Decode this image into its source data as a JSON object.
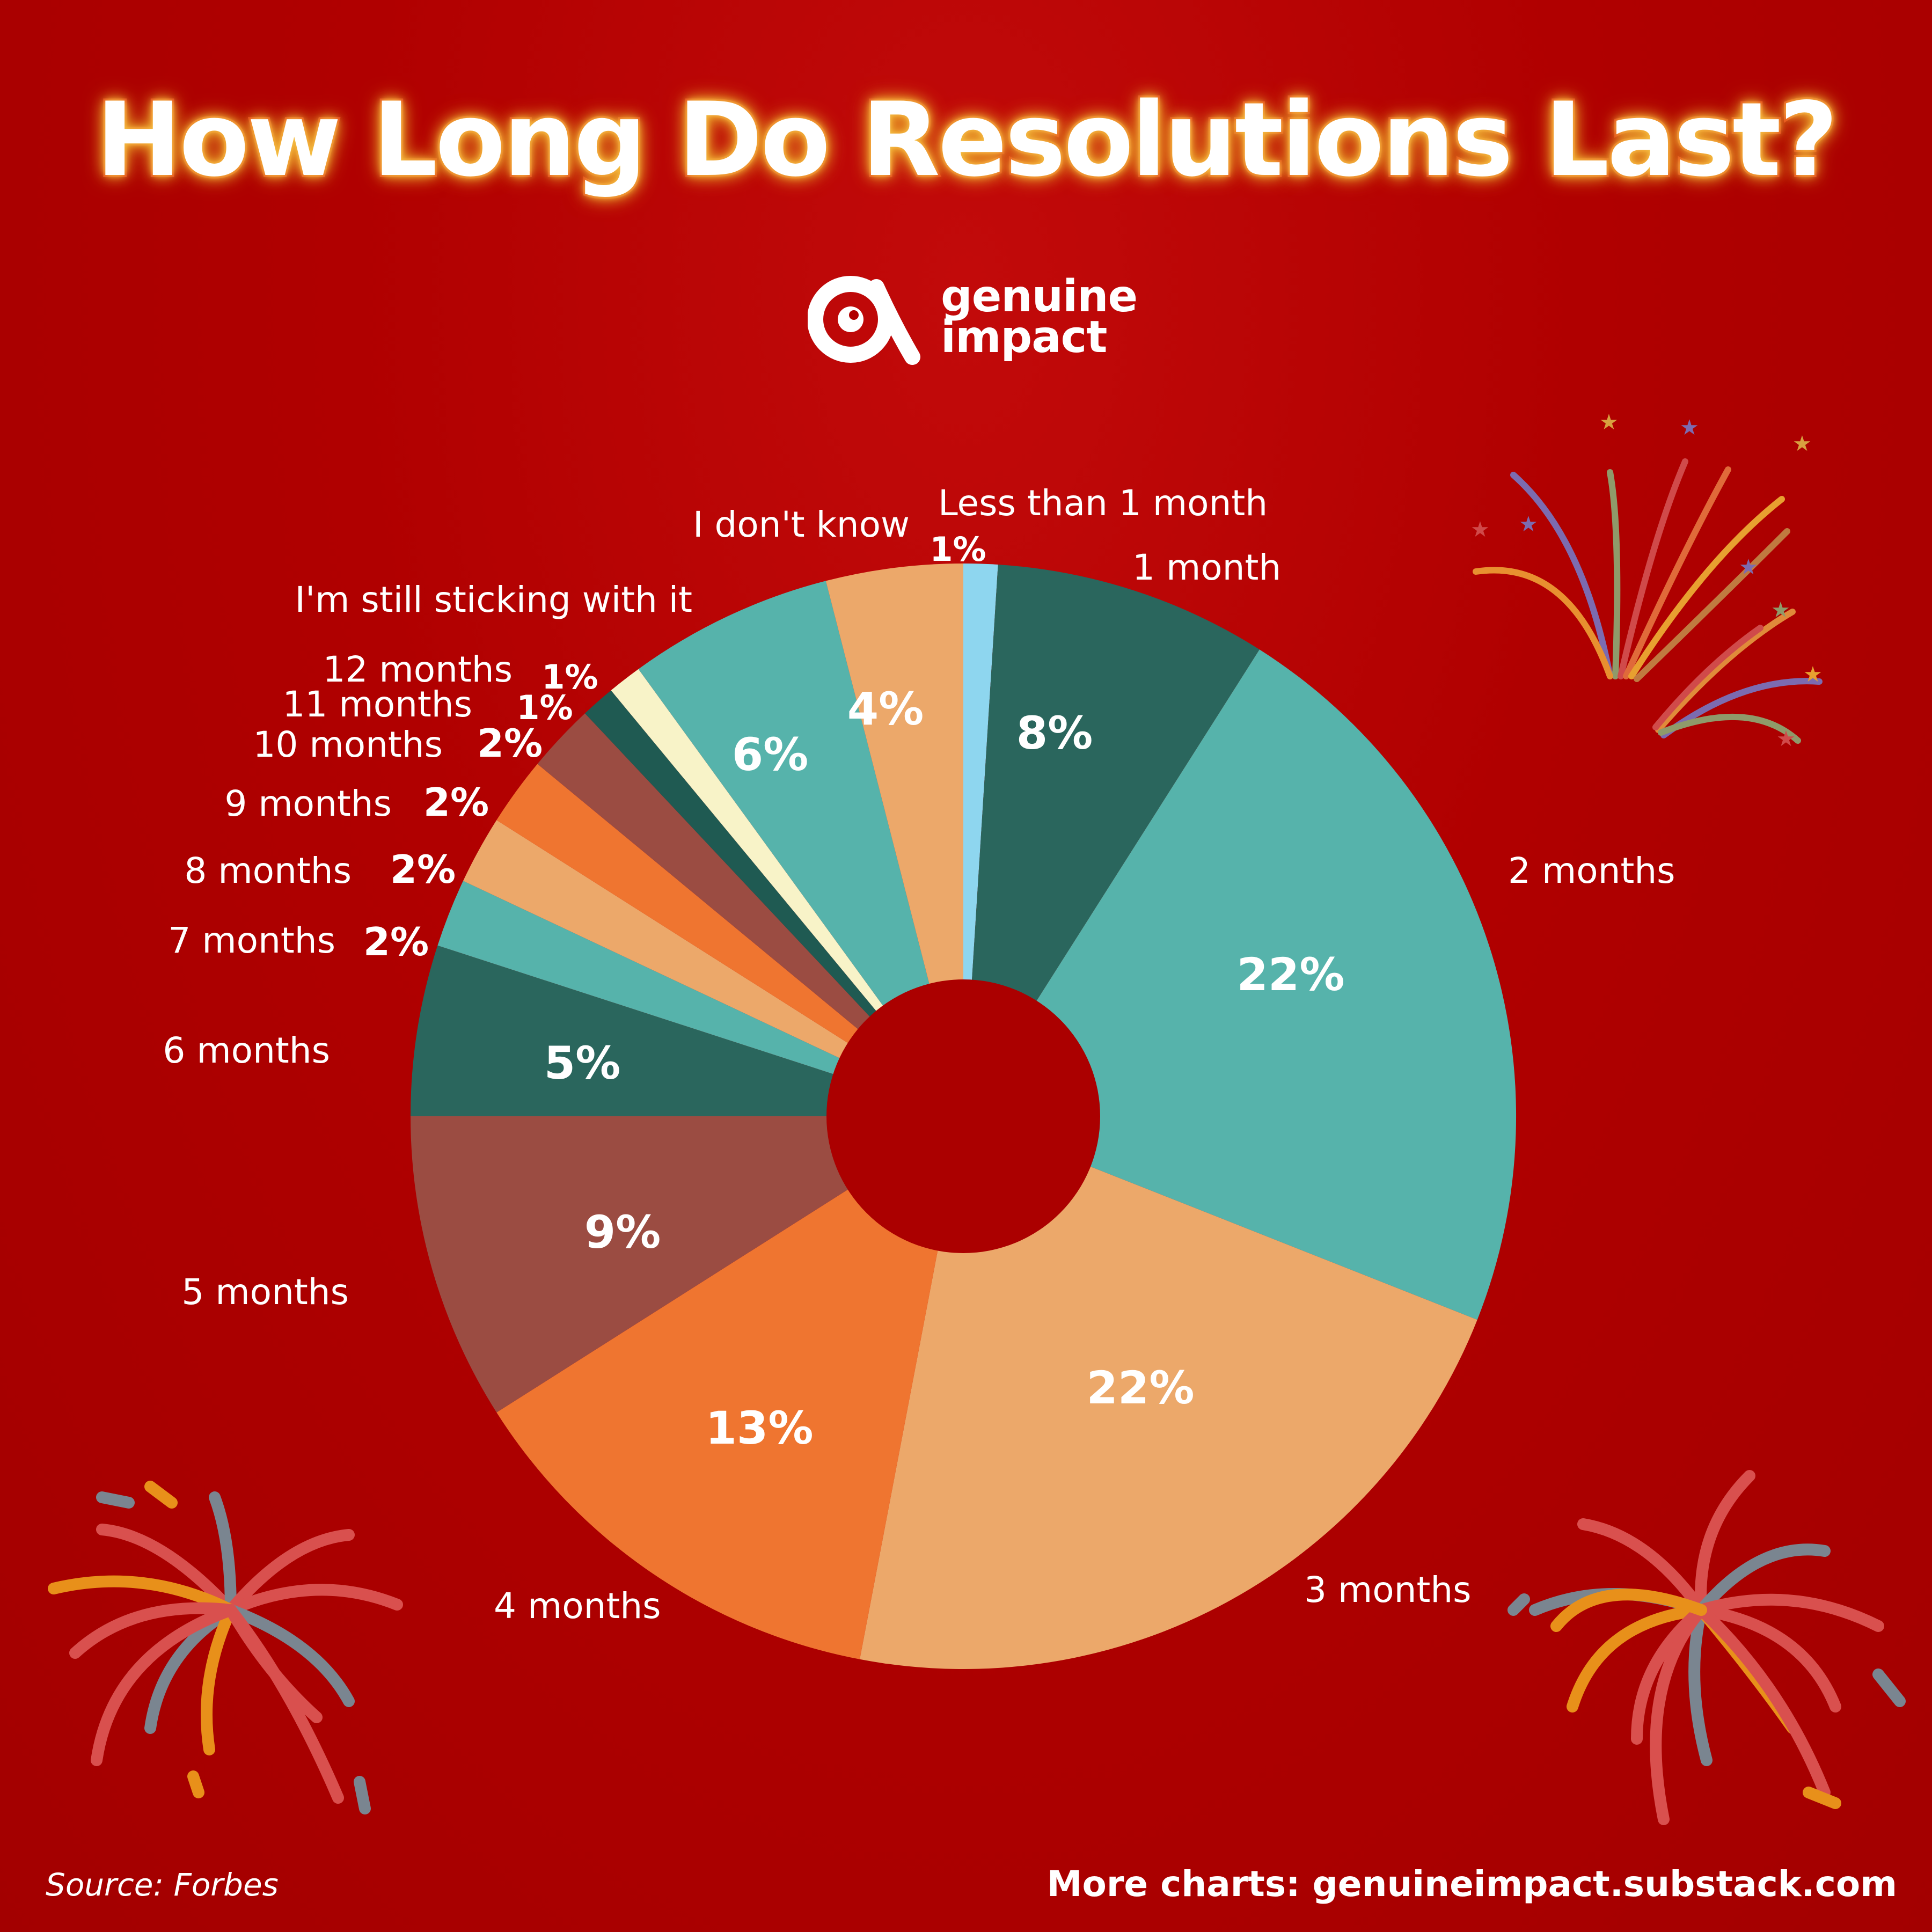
{
  "title": "How Long Do Resolutions Last?",
  "brand": {
    "name": "genuine\nimpact",
    "icon": "alpha-eye-logo-icon"
  },
  "source": "Source: Forbes",
  "more_charts": "More charts: genuineimpact.substack.com",
  "colors": {
    "background": "#b00000",
    "title_stroke": "#e2231a",
    "title_glow": "#f0b030"
  },
  "chart_data": {
    "type": "pie",
    "title": "How Long Do Resolutions Last?",
    "slices": [
      {
        "label": "Less than 1 month",
        "value": 1,
        "value_label": "1%",
        "color": "#8ed6ef"
      },
      {
        "label": "1 month",
        "value": 8,
        "value_label": "8%",
        "color": "#2a665d"
      },
      {
        "label": "2 months",
        "value": 22,
        "value_label": "22%",
        "color": "#56b3ab"
      },
      {
        "label": "3 months",
        "value": 22,
        "value_label": "22%",
        "color": "#eca86a"
      },
      {
        "label": "4 months",
        "value": 13,
        "value_label": "13%",
        "color": "#ef7530"
      },
      {
        "label": "5 months",
        "value": 9,
        "value_label": "9%",
        "color": "#9b4c42"
      },
      {
        "label": "6 months",
        "value": 5,
        "value_label": "5%",
        "color": "#2a665d"
      },
      {
        "label": "7 months",
        "value": 2,
        "value_label": "2%",
        "color": "#56b3ab"
      },
      {
        "label": "8 months",
        "value": 2,
        "value_label": "2%",
        "color": "#eca86a"
      },
      {
        "label": "9 months",
        "value": 2,
        "value_label": "2%",
        "color": "#ef7530"
      },
      {
        "label": "10 months",
        "value": 2,
        "value_label": "2%",
        "color": "#9b4c42"
      },
      {
        "label": "11 months",
        "value": 1,
        "value_label": "1%",
        "color": "#1f5a52"
      },
      {
        "label": "12 months",
        "value": 1,
        "value_label": "1%",
        "color": "#f8f3c8"
      },
      {
        "label": "I'm still sticking with it",
        "value": 6,
        "value_label": "6%",
        "color": "#56b3ab"
      },
      {
        "label": "I don't know",
        "value": 4,
        "value_label": "4%",
        "color": "#eca86a"
      }
    ]
  }
}
